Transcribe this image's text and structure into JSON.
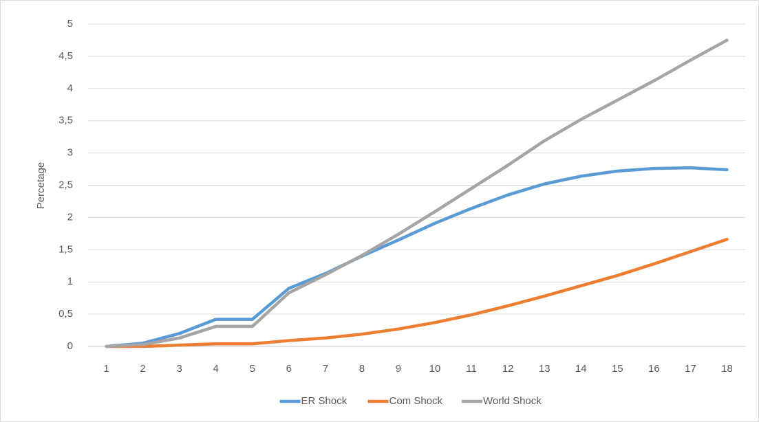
{
  "chart_data": {
    "type": "line",
    "y_label": "Percetage",
    "categories": [
      "1",
      "2",
      "3",
      "4",
      "5",
      "6",
      "7",
      "8",
      "9",
      "10",
      "11",
      "12",
      "13",
      "14",
      "15",
      "16",
      "17",
      "18"
    ],
    "series": [
      {
        "name": "ER Shock",
        "color": "#5b9bd5",
        "values": [
          0,
          0.05,
          0.2,
          0.42,
          0.42,
          0.9,
          1.13,
          1.4,
          1.65,
          1.91,
          2.14,
          2.35,
          2.52,
          2.64,
          2.72,
          2.76,
          2.77,
          2.74
        ]
      },
      {
        "name": "Com Shock",
        "color": "#ed7d31",
        "values": [
          0,
          0,
          0.02,
          0.04,
          0.04,
          0.09,
          0.13,
          0.19,
          0.27,
          0.37,
          0.49,
          0.63,
          0.78,
          0.94,
          1.1,
          1.28,
          1.47,
          1.66
        ]
      },
      {
        "name": "World Shock",
        "color": "#a5a5a5",
        "values": [
          0,
          0.03,
          0.13,
          0.31,
          0.31,
          0.83,
          1.11,
          1.41,
          1.74,
          2.09,
          2.45,
          2.81,
          3.19,
          3.52,
          3.82,
          4.12,
          4.44,
          4.75
        ]
      }
    ],
    "ylim": [
      0,
      5
    ],
    "yticks": [
      0,
      {
        "value": 0.5,
        "label": "0,5"
      },
      1,
      {
        "value": 1.5,
        "label": "1,5"
      },
      2,
      {
        "value": 2.5,
        "label": "2,5"
      },
      3,
      {
        "value": 3.5,
        "label": "3,5"
      },
      4,
      {
        "value": 4.5,
        "label": "4,5"
      },
      5
    ],
    "grid": true,
    "legend": "bottom"
  }
}
